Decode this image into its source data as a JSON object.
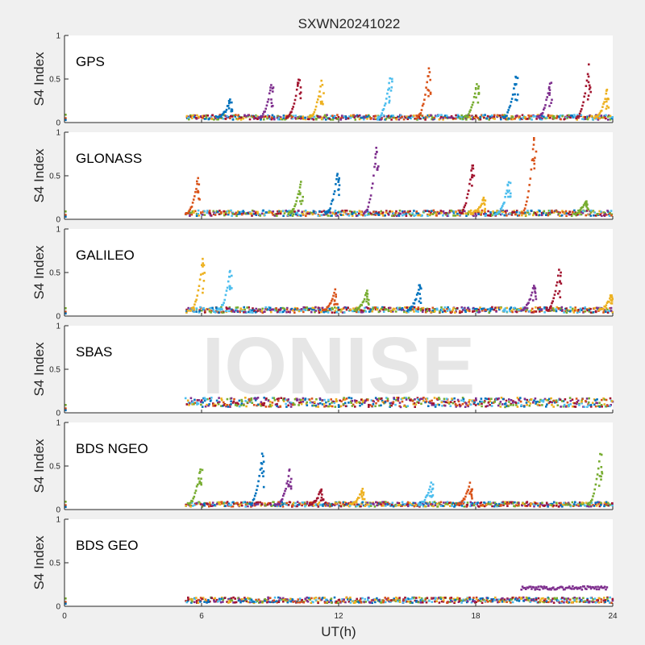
{
  "title": "SXWN20241022",
  "watermark": "IONISE",
  "ylabel": "S4 Index",
  "xlabel": "UT(h)",
  "xticks": [
    0,
    6,
    12,
    18,
    24
  ],
  "yticks": [
    0,
    0.5,
    1
  ],
  "xlim": [
    0,
    24
  ],
  "ylim": [
    0,
    1
  ],
  "colors": [
    "#0072BD",
    "#D95319",
    "#EDB120",
    "#7E2F8E",
    "#77AC30",
    "#4DBEEE",
    "#A2142F"
  ],
  "chart_data": [
    {
      "type": "scatter",
      "label": "GPS",
      "xlabel": "",
      "ylabel": "S4 Index",
      "xlim": [
        0,
        24
      ],
      "ylim": [
        0,
        1
      ],
      "baseline_range_hours": [
        5.3,
        24
      ],
      "baseline_s4": 0.06,
      "spikes": [
        {
          "x": 7.2,
          "y": 0.26
        },
        {
          "x": 9.0,
          "y": 0.43
        },
        {
          "x": 10.2,
          "y": 0.49
        },
        {
          "x": 11.2,
          "y": 0.49
        },
        {
          "x": 14.2,
          "y": 0.51
        },
        {
          "x": 15.9,
          "y": 0.63
        },
        {
          "x": 18.0,
          "y": 0.44
        },
        {
          "x": 19.7,
          "y": 0.52
        },
        {
          "x": 21.2,
          "y": 0.46
        },
        {
          "x": 22.9,
          "y": 0.66
        },
        {
          "x": 23.7,
          "y": 0.37
        }
      ]
    },
    {
      "type": "scatter",
      "label": "GLONASS",
      "xlabel": "",
      "ylabel": "S4 Index",
      "xlim": [
        0,
        24
      ],
      "ylim": [
        0,
        1
      ],
      "baseline_range_hours": [
        5.3,
        24
      ],
      "baseline_s4": 0.07,
      "spikes": [
        {
          "x": 5.8,
          "y": 0.48
        },
        {
          "x": 10.3,
          "y": 0.42
        },
        {
          "x": 11.9,
          "y": 0.52
        },
        {
          "x": 13.6,
          "y": 0.81
        },
        {
          "x": 17.8,
          "y": 0.63
        },
        {
          "x": 18.3,
          "y": 0.24
        },
        {
          "x": 19.4,
          "y": 0.43
        },
        {
          "x": 20.5,
          "y": 0.93
        },
        {
          "x": 22.8,
          "y": 0.22
        }
      ]
    },
    {
      "type": "scatter",
      "label": "GALILEO",
      "xlabel": "",
      "ylabel": "S4 Index",
      "xlim": [
        0,
        24
      ],
      "ylim": [
        0,
        1
      ],
      "baseline_range_hours": [
        5.3,
        24
      ],
      "baseline_s4": 0.07,
      "spikes": [
        {
          "x": 6.0,
          "y": 0.66
        },
        {
          "x": 7.2,
          "y": 0.51
        },
        {
          "x": 11.8,
          "y": 0.3
        },
        {
          "x": 13.2,
          "y": 0.3
        },
        {
          "x": 15.5,
          "y": 0.36
        },
        {
          "x": 20.5,
          "y": 0.35
        },
        {
          "x": 21.6,
          "y": 0.53
        },
        {
          "x": 23.9,
          "y": 0.25
        }
      ]
    },
    {
      "type": "scatter",
      "label": "SBAS",
      "xlabel": "",
      "ylabel": "S4 Index",
      "xlim": [
        0,
        24
      ],
      "ylim": [
        0,
        1
      ],
      "baseline_range_hours": [
        5.3,
        24
      ],
      "baseline_s4": 0.12,
      "spikes": []
    },
    {
      "type": "scatter",
      "label": "BDS NGEO",
      "xlabel": "",
      "ylabel": "S4 Index",
      "xlim": [
        0,
        24
      ],
      "ylim": [
        0,
        1
      ],
      "baseline_range_hours": [
        5.3,
        24
      ],
      "baseline_s4": 0.06,
      "spikes": [
        {
          "x": 5.9,
          "y": 0.47
        },
        {
          "x": 8.6,
          "y": 0.63
        },
        {
          "x": 9.8,
          "y": 0.45
        },
        {
          "x": 11.2,
          "y": 0.24
        },
        {
          "x": 13.0,
          "y": 0.24
        },
        {
          "x": 16.0,
          "y": 0.3
        },
        {
          "x": 17.7,
          "y": 0.3
        },
        {
          "x": 23.4,
          "y": 0.65
        }
      ]
    },
    {
      "type": "scatter",
      "label": "BDS GEO",
      "xlabel": "UT(h)",
      "ylabel": "S4 Index",
      "xlim": [
        0,
        24
      ],
      "ylim": [
        0,
        1
      ],
      "baseline_range_hours": [
        5.3,
        24
      ],
      "baseline_s4": 0.07,
      "segments": [
        {
          "x_range": [
            20.0,
            23.8
          ],
          "y": 0.21
        }
      ],
      "spikes": []
    }
  ]
}
